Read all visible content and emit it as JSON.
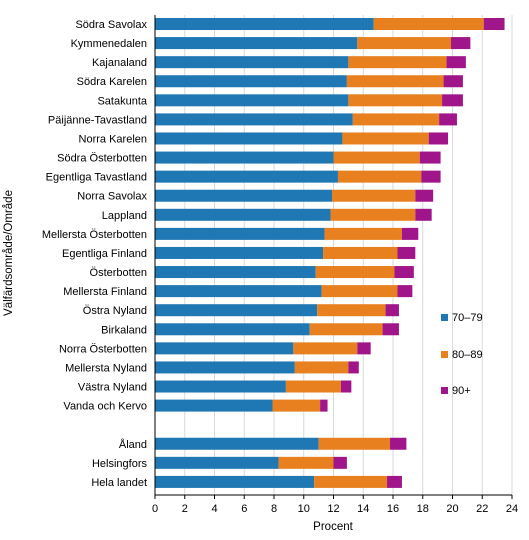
{
  "chart_data": {
    "type": "bar",
    "orientation": "horizontal",
    "stacked": true,
    "xlabel": "Procent",
    "ylabel": "Välfärdsområde/Område",
    "xlim": [
      0,
      24
    ],
    "xticks": [
      0,
      2,
      4,
      6,
      8,
      10,
      12,
      14,
      16,
      18,
      20,
      22,
      24
    ],
    "grid": "vertical",
    "legend_position": "right",
    "categories": [
      "Södra Savolax",
      "Kymmenedalen",
      "Kajanaland",
      "Södra Karelen",
      "Satakunta",
      "Päijänne-Tavastland",
      "Norra Karelen",
      "Södra Österbotten",
      "Egentliga Tavastland",
      "Norra Savolax",
      "Lappland",
      "Mellersta Österbotten",
      "Egentliga Finland",
      "Österbotten",
      "Mellersta Finland",
      "Östra Nyland",
      "Birkaland",
      "Norra Österbotten",
      "Mellersta Nyland",
      "Västra Nyland",
      "Vanda och Kervo",
      "",
      "Åland",
      "Helsingfors",
      "Hela landet"
    ],
    "series": [
      {
        "name": "70–79",
        "color": "#1f78b4",
        "values": [
          14.7,
          13.6,
          13.0,
          12.9,
          13.0,
          13.3,
          12.6,
          12.0,
          12.3,
          11.9,
          11.8,
          11.4,
          11.3,
          10.8,
          11.2,
          10.9,
          10.4,
          9.3,
          9.4,
          8.8,
          7.9,
          null,
          11.0,
          8.3,
          10.7
        ]
      },
      {
        "name": "80–89",
        "color": "#e8801f",
        "values": [
          7.4,
          6.3,
          6.6,
          6.5,
          6.3,
          5.8,
          5.8,
          5.8,
          5.6,
          5.6,
          5.7,
          5.2,
          5.0,
          5.3,
          5.1,
          4.6,
          4.9,
          4.3,
          3.6,
          3.7,
          3.2,
          null,
          4.8,
          3.7,
          4.9
        ]
      },
      {
        "name": "90+",
        "color": "#a0168a",
        "values": [
          1.4,
          1.3,
          1.3,
          1.3,
          1.4,
          1.2,
          1.3,
          1.4,
          1.3,
          1.2,
          1.1,
          1.1,
          1.2,
          1.3,
          1.0,
          0.9,
          1.1,
          0.9,
          0.7,
          0.7,
          0.5,
          null,
          1.1,
          0.9,
          1.0
        ]
      }
    ]
  }
}
